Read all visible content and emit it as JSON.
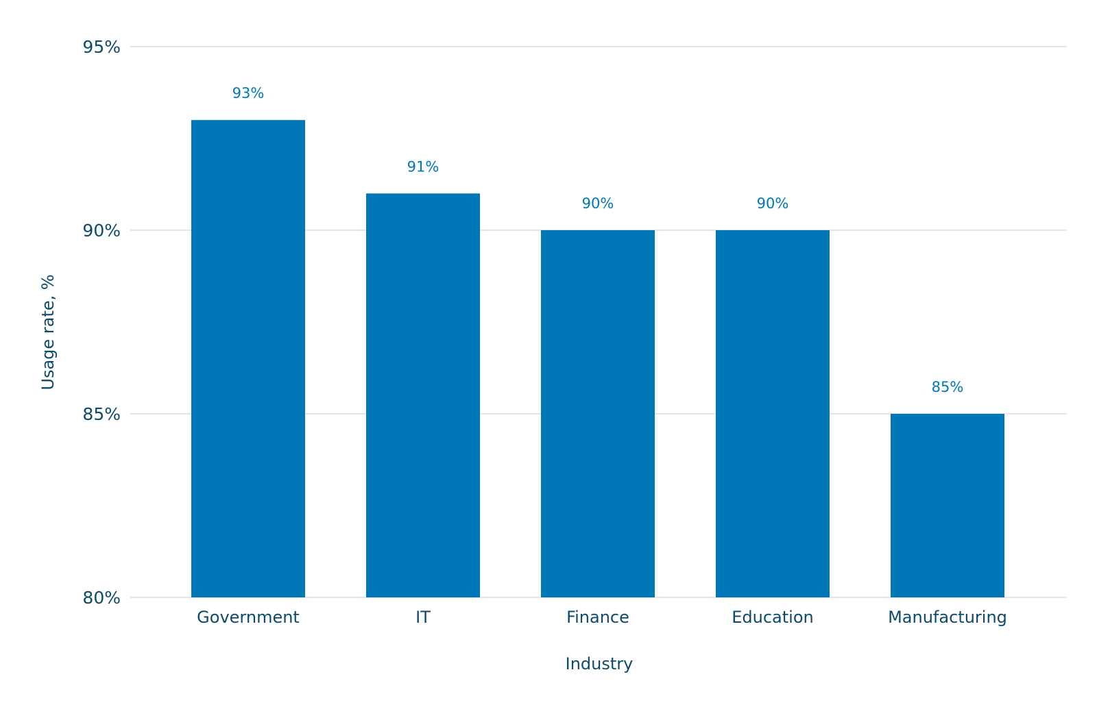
{
  "chart_data": {
    "type": "bar",
    "title": "",
    "xlabel": "Industry",
    "ylabel": "Usage rate, %",
    "categories": [
      "Government",
      "IT",
      "Finance",
      "Education",
      "Manufacturing"
    ],
    "values": [
      93,
      91,
      90,
      90,
      85
    ],
    "data_labels": [
      "93%",
      "91%",
      "90%",
      "90%",
      "85%"
    ],
    "ylim": [
      80,
      95
    ],
    "yticks": [
      80,
      85,
      90,
      95
    ],
    "ytick_labels": [
      "80%",
      "85%",
      "90%",
      "95%"
    ],
    "grid": true,
    "legend": "none"
  },
  "colors": {
    "bar": "#0077b6",
    "data_label": "#0077b6",
    "axis_text": "#0d4a6b",
    "grid": "#d3d3d3"
  }
}
